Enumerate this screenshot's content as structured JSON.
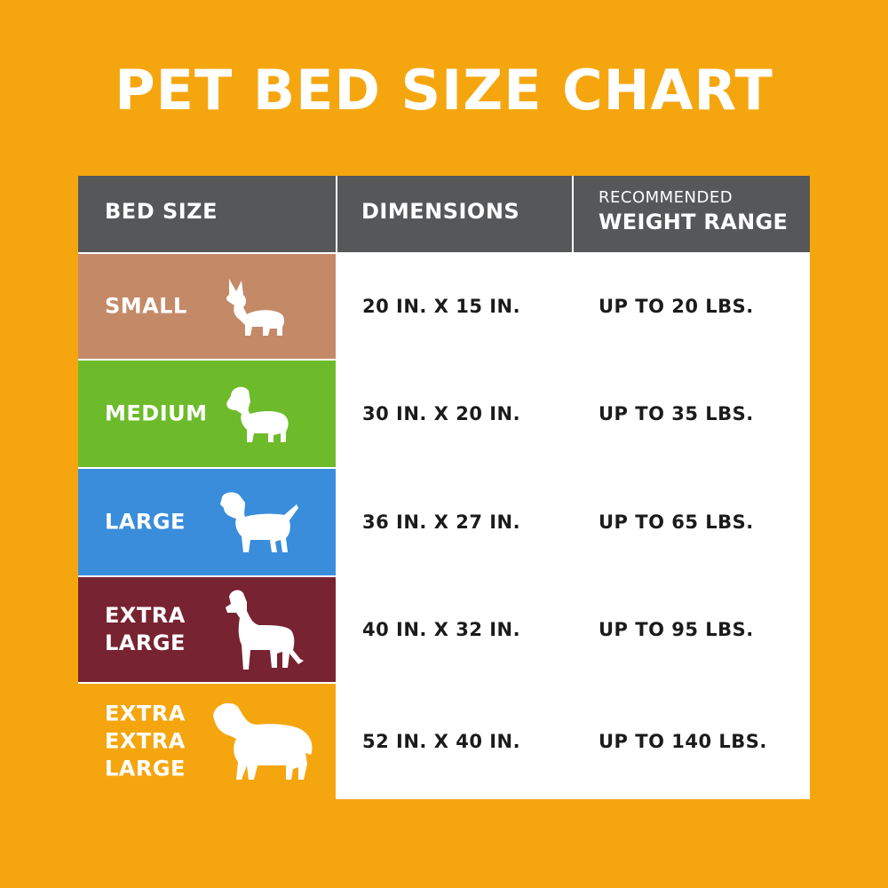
{
  "title": "PET BED SIZE CHART",
  "headers": {
    "bed_size": "BED SIZE",
    "dimensions": "DIMENSIONS",
    "weight_small": "RECOMMENDED",
    "weight_big": "WEIGHT RANGE"
  },
  "colors": {
    "background": "#F5A60F",
    "header": "#555759",
    "small": "#C48A68",
    "medium": "#6DBB2B",
    "large": "#3A8DDB",
    "extra_large": "#772331",
    "extra_extra_large": "#F5A60F"
  },
  "rows": [
    {
      "size": "SMALL",
      "dimensions": "20 IN. X 15 IN.",
      "weight": "UP TO 20 LBS.",
      "icon": "small-dog-icon"
    },
    {
      "size": "MEDIUM",
      "dimensions": "30 IN. X 20 IN.",
      "weight": "UP TO 35 LBS.",
      "icon": "medium-dog-icon"
    },
    {
      "size": "LARGE",
      "dimensions": "36 IN. X 27 IN.",
      "weight": "UP TO 65 LBS.",
      "icon": "large-dog-icon"
    },
    {
      "size": "EXTRA\nLARGE",
      "dimensions": "40 IN. X 32 IN.",
      "weight": "UP TO 95 LBS.",
      "icon": "extra-large-dog-icon"
    },
    {
      "size": "EXTRA\nEXTRA\nLARGE",
      "dimensions": "52 IN. X 40 IN.",
      "weight": "UP TO 140 LBS.",
      "icon": "extra-extra-large-dog-icon"
    }
  ]
}
